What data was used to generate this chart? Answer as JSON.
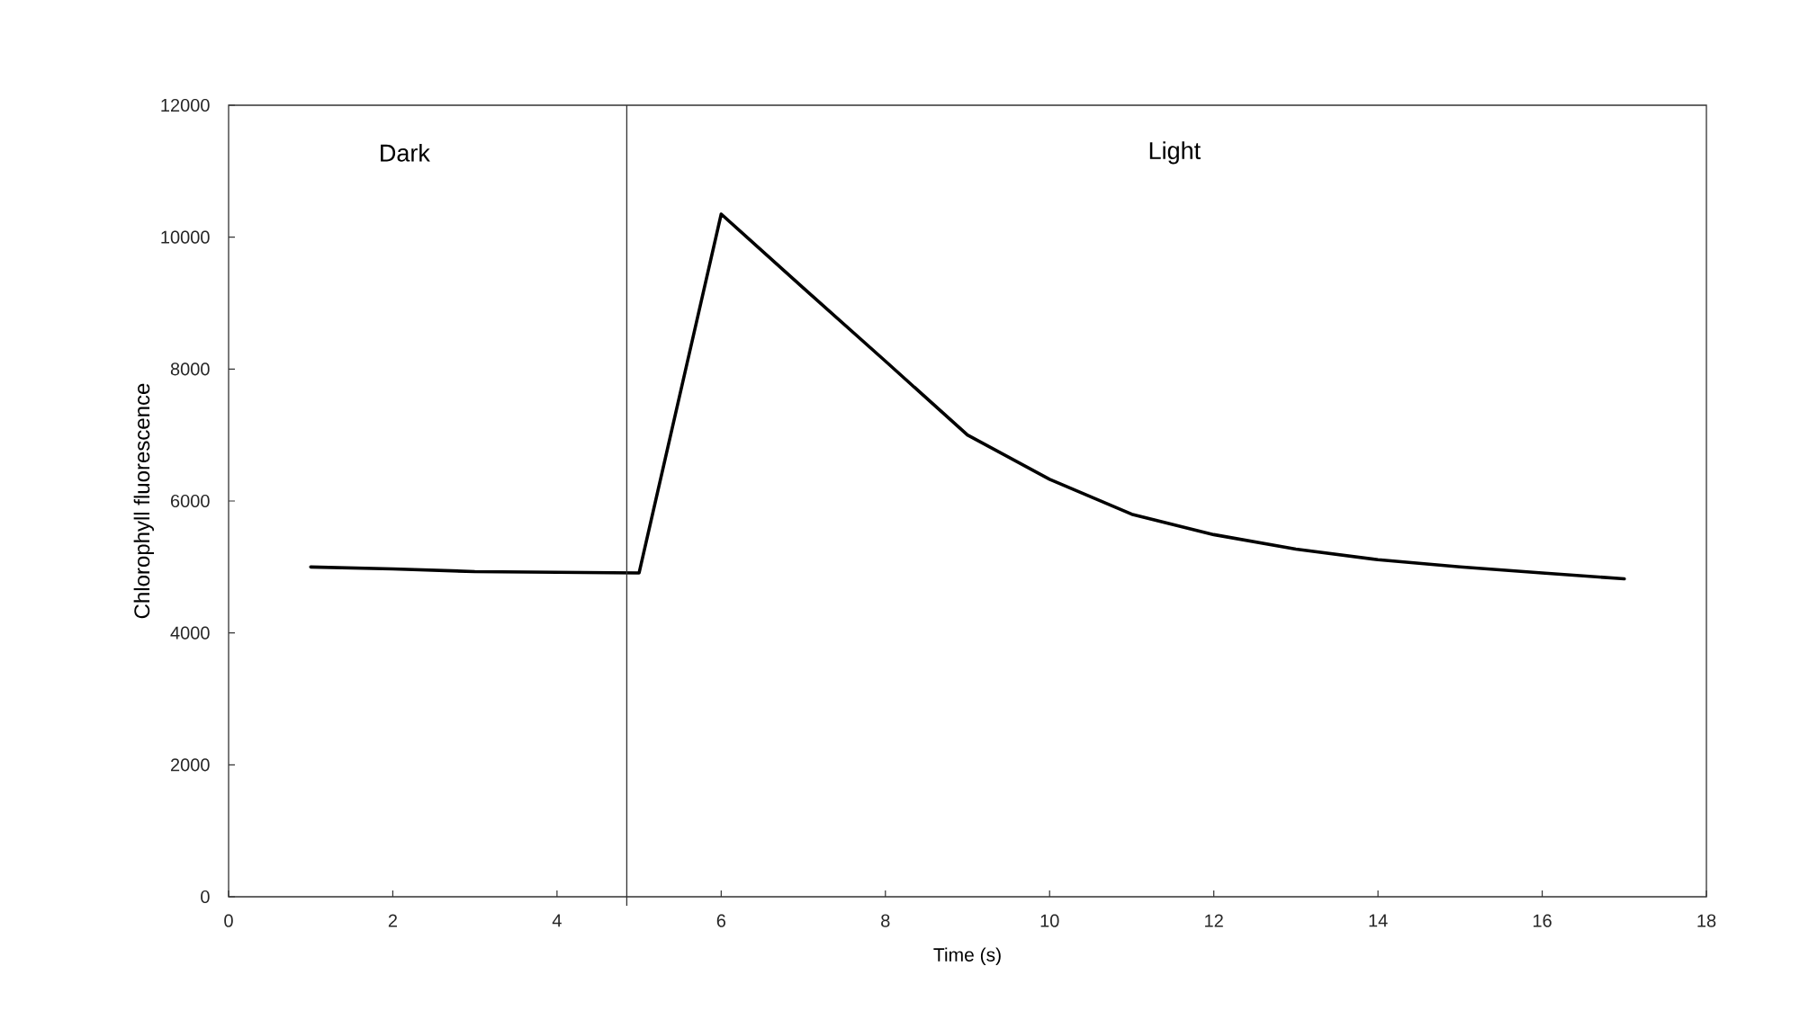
{
  "chart_data": {
    "type": "line",
    "xlabel": "Time (s)",
    "ylabel": "Chlorophyll fluorescence",
    "x": [
      1,
      2,
      3,
      4,
      5,
      6,
      7,
      8,
      9,
      10,
      11,
      12,
      13,
      14,
      15,
      16,
      17
    ],
    "series": [
      {
        "color": "#000000",
        "values": [
          5000,
          4970,
          4930,
          4920,
          4910,
          10350,
          9230,
          8120,
          7000,
          6330,
          5800,
          5490,
          5270,
          5110,
          5000,
          4910,
          4820
        ]
      }
    ],
    "xlim": [
      0,
      18
    ],
    "xticks": [
      0,
      2,
      4,
      6,
      8,
      10,
      12,
      14,
      16,
      18
    ],
    "ylim": [
      0,
      12000
    ],
    "yticks": [
      0,
      2000,
      4000,
      6000,
      8000,
      10000,
      12000
    ],
    "grid": false,
    "marker": "none",
    "line_style": "solid",
    "ref_lines": [
      {
        "axis": "x",
        "value": 4.85,
        "color": "#333333"
      }
    ],
    "annotations": [
      "Dark",
      "Light"
    ]
  }
}
